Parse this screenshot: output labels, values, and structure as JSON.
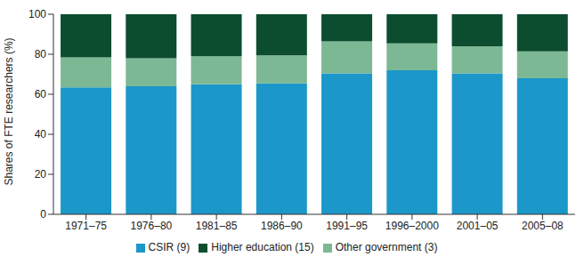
{
  "chart_data": {
    "type": "bar",
    "stacked": true,
    "y_label": "Shares of FTE researchers (%)",
    "categories": [
      "1971–75",
      "1976–80",
      "1981–85",
      "1986–90",
      "1991–95",
      "1996–2000",
      "2001–05",
      "2005–08"
    ],
    "series": [
      {
        "name": "CSIR (9)",
        "color": "#1b98c9",
        "values": [
          63.5,
          64,
          65,
          65.5,
          70.5,
          72,
          70.5,
          68
        ]
      },
      {
        "name": "Other government (3)",
        "color": "#7db894",
        "values": [
          15,
          14,
          14,
          14,
          16,
          13.5,
          13.5,
          13.5
        ]
      },
      {
        "name": "Higher education (15)",
        "color": "#0c4d2f",
        "values": [
          21.5,
          22,
          21,
          20.5,
          13.5,
          14.5,
          16,
          18.5
        ]
      }
    ],
    "ylim": [
      0,
      100
    ],
    "yticks": [
      0,
      20,
      40,
      60,
      80,
      100
    ],
    "grid": false,
    "legend": "bottom"
  }
}
